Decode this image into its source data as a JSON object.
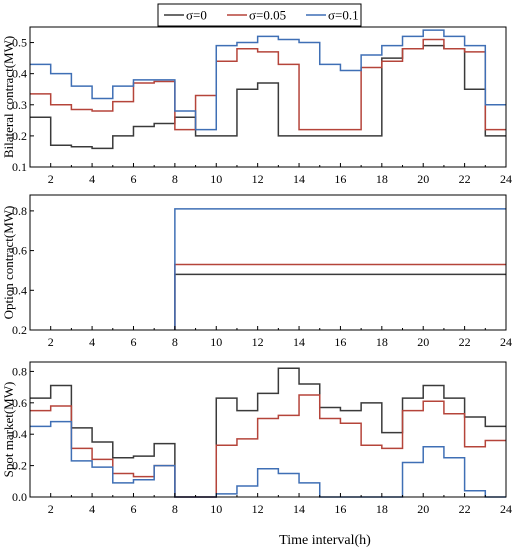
{
  "legend": {
    "entries": [
      {
        "label": "σ=0",
        "color": "#3a3a3a"
      },
      {
        "label": "σ=0.05",
        "color": "#b5443a"
      },
      {
        "label": "σ=0.1",
        "color": "#3f6fb5"
      }
    ]
  },
  "xlabel": "Time interval(h)",
  "chart_data": [
    {
      "type": "line",
      "step": true,
      "ylabel": "Bilateral contract(MW)",
      "xlim": [
        1,
        24
      ],
      "ylim": [
        0.1,
        0.55
      ],
      "xticks": [
        2,
        4,
        6,
        8,
        10,
        12,
        14,
        16,
        18,
        20,
        22,
        24
      ],
      "yticks": [
        0.1,
        0.2,
        0.3,
        0.4,
        0.5
      ],
      "ytick_labels": [
        "0.1",
        "0.2",
        "0.3",
        "0.4",
        "0.5"
      ],
      "series": [
        {
          "name": "σ=0",
          "color": "#3a3a3a",
          "values": [
            0.26,
            0.17,
            0.165,
            0.16,
            0.2,
            0.23,
            0.24,
            0.26,
            0.2,
            0.2,
            0.35,
            0.37,
            0.2,
            0.2,
            0.2,
            0.2,
            0.2,
            0.45,
            0.48,
            0.49,
            0.48,
            0.35,
            0.2
          ]
        },
        {
          "name": "σ=0.05",
          "color": "#b5443a",
          "values": [
            0.335,
            0.3,
            0.285,
            0.28,
            0.31,
            0.37,
            0.375,
            0.22,
            0.33,
            0.44,
            0.48,
            0.47,
            0.43,
            0.22,
            0.22,
            0.22,
            0.42,
            0.44,
            0.48,
            0.51,
            0.48,
            0.47,
            0.22
          ]
        },
        {
          "name": "σ=0.1",
          "color": "#3f6fb5",
          "values": [
            0.43,
            0.4,
            0.36,
            0.32,
            0.36,
            0.38,
            0.38,
            0.28,
            0.22,
            0.49,
            0.5,
            0.52,
            0.51,
            0.5,
            0.43,
            0.41,
            0.46,
            0.49,
            0.52,
            0.54,
            0.52,
            0.49,
            0.3
          ]
        }
      ]
    },
    {
      "type": "line",
      "step": true,
      "ylabel": "Option contract(MW)",
      "xlim": [
        1,
        24
      ],
      "ylim": [
        0.2,
        0.88
      ],
      "xticks": [
        2,
        4,
        6,
        8,
        10,
        12,
        14,
        16,
        18,
        20,
        22,
        24
      ],
      "yticks": [
        0.2,
        0.4,
        0.6,
        0.8
      ],
      "ytick_labels": [
        "0.2",
        "0.4",
        "0.6",
        "0.8"
      ],
      "series": [
        {
          "name": "σ=0",
          "color": "#3a3a3a",
          "x": [
            8,
            24
          ],
          "values": [
            0.48,
            0.48
          ]
        },
        {
          "name": "σ=0.05",
          "color": "#b5443a",
          "x": [
            8,
            24
          ],
          "values": [
            0.53,
            0.53
          ]
        },
        {
          "name": "σ=0.1",
          "color": "#3f6fb5",
          "x": [
            8,
            24
          ],
          "values": [
            0.81,
            0.81
          ]
        }
      ]
    },
    {
      "type": "line",
      "step": true,
      "ylabel": "Spot market(MW)",
      "xlim": [
        1,
        24
      ],
      "ylim": [
        0.0,
        0.86
      ],
      "xticks": [
        2,
        4,
        6,
        8,
        10,
        12,
        14,
        16,
        18,
        20,
        22,
        24
      ],
      "yticks": [
        0.0,
        0.2,
        0.4,
        0.6,
        0.8
      ],
      "ytick_labels": [
        "0.0",
        "0.2",
        "0.4",
        "0.6",
        "0.8"
      ],
      "series": [
        {
          "name": "σ=0",
          "color": "#3a3a3a",
          "values": [
            0.63,
            0.71,
            0.44,
            0.35,
            0.25,
            0.26,
            0.34,
            0.0,
            0.0,
            0.63,
            0.55,
            0.66,
            0.82,
            0.72,
            0.57,
            0.55,
            0.6,
            0.41,
            0.63,
            0.71,
            0.63,
            0.51,
            0.45
          ]
        },
        {
          "name": "σ=0.05",
          "color": "#b5443a",
          "values": [
            0.55,
            0.58,
            0.31,
            0.24,
            0.15,
            0.13,
            0.2,
            0.0,
            0.0,
            0.33,
            0.37,
            0.5,
            0.52,
            0.65,
            0.5,
            0.47,
            0.33,
            0.31,
            0.55,
            0.61,
            0.53,
            0.32,
            0.36
          ]
        },
        {
          "name": "σ=0.1",
          "color": "#3f6fb5",
          "values": [
            0.45,
            0.48,
            0.23,
            0.19,
            0.09,
            0.11,
            0.2,
            0.0,
            0.0,
            0.02,
            0.07,
            0.18,
            0.15,
            0.09,
            0.0,
            0.0,
            0.0,
            0.0,
            0.22,
            0.32,
            0.25,
            0.04,
            0.0
          ]
        }
      ]
    }
  ]
}
